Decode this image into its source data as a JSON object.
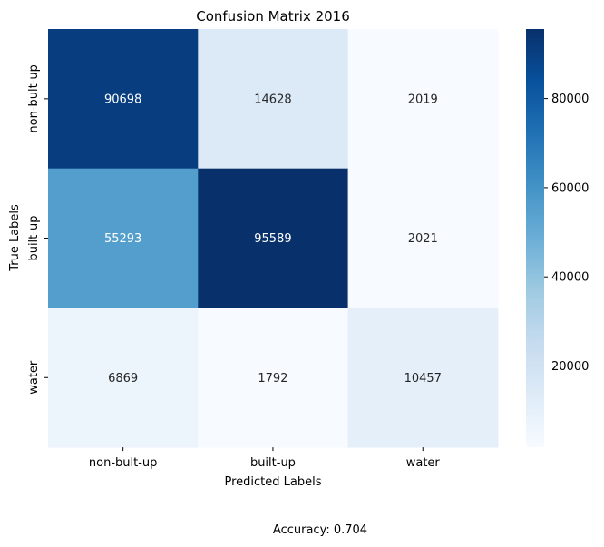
{
  "chart_data": {
    "type": "heatmap",
    "title": "Confusion Matrix 2016",
    "xlabel": "Predicted Labels",
    "ylabel": "True Labels",
    "x_categories": [
      "non-bult-up",
      "built-up",
      "water"
    ],
    "y_categories": [
      "non-bult-up",
      "built-up",
      "water"
    ],
    "values": [
      [
        90698,
        14628,
        2019
      ],
      [
        55293,
        95589,
        2021
      ],
      [
        6869,
        1792,
        10457
      ]
    ],
    "colormap": "Blues",
    "color_range": [
      1792,
      95589
    ],
    "colorbar_ticks": [
      "20000",
      "40000",
      "60000",
      "80000"
    ],
    "colorbar_tick_values": [
      20000,
      40000,
      60000,
      80000
    ],
    "footer": "Accuracy: 0.704"
  }
}
